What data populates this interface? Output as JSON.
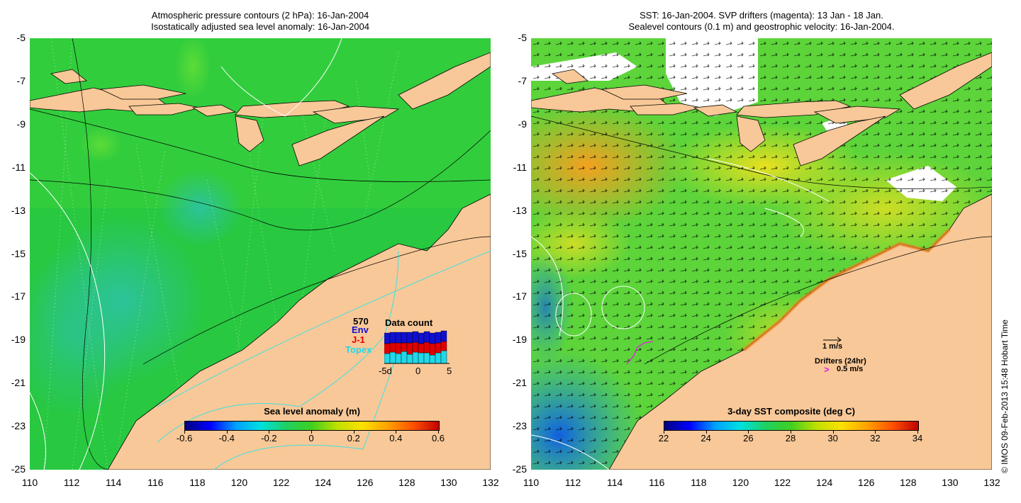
{
  "left_panel": {
    "title_line1": "Atmospheric pressure contours (2 hPa): 16-Jan-2004",
    "title_line2": "Isostatically adjusted sea level anomaly: 16-Jan-2004",
    "colorbar": {
      "title": "Sea level anomaly (m)",
      "ticks": [
        "-0.6",
        "-0.4",
        "-0.2",
        "0",
        "0.2",
        "0.4",
        "0.6"
      ]
    },
    "data_count": {
      "title": "Data count",
      "total": "570",
      "series": [
        "Env",
        "J-1",
        "Topex"
      ],
      "series_colors": [
        "#1010d0",
        "#e00000",
        "#20d8e8"
      ],
      "x_ticks": [
        "-5d",
        "0",
        "5"
      ]
    }
  },
  "right_panel": {
    "title_line1": "SST: 16-Jan-2004. SVP drifters (magenta): 13 Jan - 18 Jan.",
    "title_line2": "Sealevel contours (0.1 m) and geostrophic velocity: 16-Jan-2004.",
    "colorbar": {
      "title": "3-day SST composite (deg C)",
      "ticks": [
        "22",
        "24",
        "26",
        "28",
        "30",
        "32",
        "34"
      ]
    },
    "velocity_scale": "1 m/s",
    "drifters_label": "Drifters (24hr)",
    "drifters_scale": "0.5 m/s"
  },
  "axes": {
    "y_ticks": [
      "-5",
      "-7",
      "-9",
      "-11",
      "-13",
      "-15",
      "-17",
      "-19",
      "-21",
      "-23",
      "-25"
    ],
    "x_ticks": [
      "110",
      "112",
      "114",
      "116",
      "118",
      "120",
      "122",
      "124",
      "126",
      "128",
      "130",
      "132"
    ]
  },
  "credit": "© IMOS 09-Feb-2013 15:48 Hobart Time",
  "colors": {
    "land": "#f8c898",
    "ocean_left": "#2fcf3a",
    "ocean_right": "#6dd63a"
  }
}
